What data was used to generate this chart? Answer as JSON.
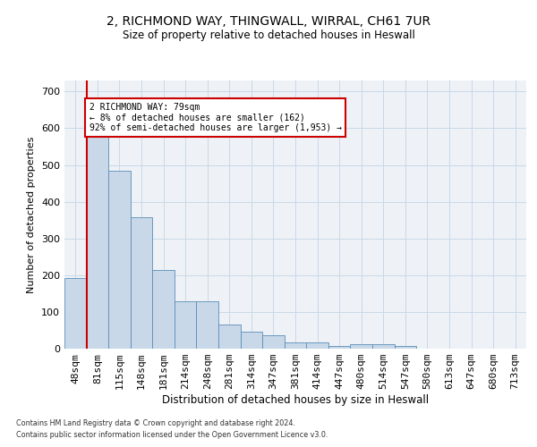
{
  "title1": "2, RICHMOND WAY, THINGWALL, WIRRAL, CH61 7UR",
  "title2": "Size of property relative to detached houses in Heswall",
  "xlabel": "Distribution of detached houses by size in Heswall",
  "ylabel": "Number of detached properties",
  "categories": [
    "48sqm",
    "81sqm",
    "115sqm",
    "148sqm",
    "181sqm",
    "214sqm",
    "248sqm",
    "281sqm",
    "314sqm",
    "347sqm",
    "381sqm",
    "414sqm",
    "447sqm",
    "480sqm",
    "514sqm",
    "547sqm",
    "580sqm",
    "613sqm",
    "647sqm",
    "680sqm",
    "713sqm"
  ],
  "values": [
    192,
    580,
    485,
    357,
    215,
    130,
    130,
    65,
    47,
    36,
    18,
    18,
    8,
    12,
    12,
    7,
    0,
    0,
    0,
    0,
    0
  ],
  "bar_color": "#c8d8e8",
  "bar_edge_color": "#5b8db8",
  "vline_color": "#cc0000",
  "annotation_text": "2 RICHMOND WAY: 79sqm\n← 8% of detached houses are smaller (162)\n92% of semi-detached houses are larger (1,953) →",
  "annotation_box_color": "#ffffff",
  "annotation_box_edge": "#cc0000",
  "ylim": [
    0,
    730
  ],
  "yticks": [
    0,
    100,
    200,
    300,
    400,
    500,
    600,
    700
  ],
  "footer1": "Contains HM Land Registry data © Crown copyright and database right 2024.",
  "footer2": "Contains public sector information licensed under the Open Government Licence v3.0.",
  "grid_color": "#c8d8e8",
  "bg_color": "#eef2f7"
}
